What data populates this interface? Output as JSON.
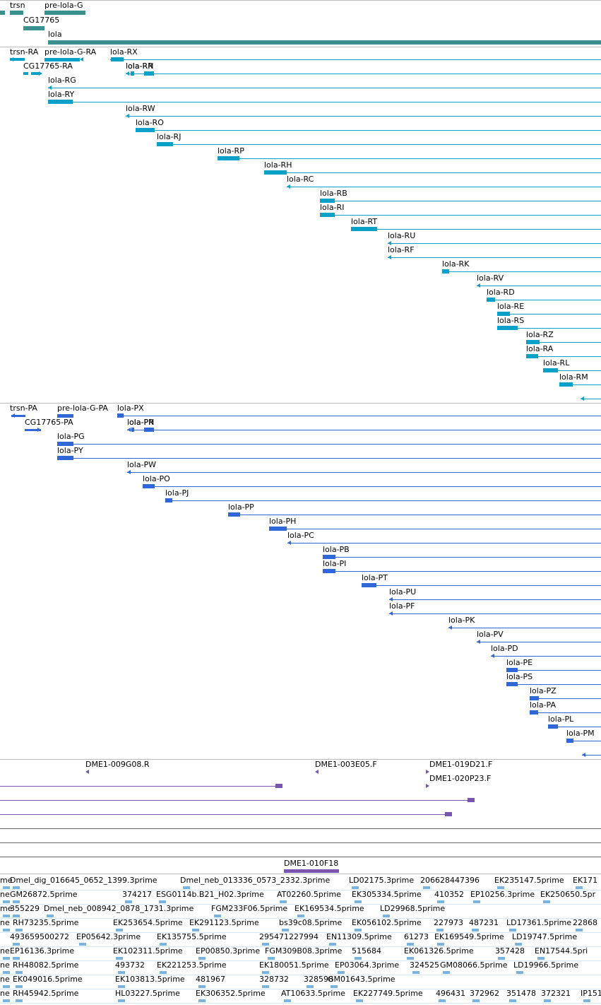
{
  "colors": {
    "gene": "#3a8f8f",
    "transcript": "#0aa0c8",
    "protein": "#2f67d6",
    "clone": "#7a55b0",
    "est": "#7ab4de",
    "separator": "#bdbdbd"
  },
  "tracks": {
    "genes": {
      "labels": [
        "trsn",
        "pre-lola-G",
        "CG17765",
        "lola"
      ]
    },
    "transcripts": {
      "labels": [
        "trsn-RA",
        "pre-lola-G-RA",
        "lola-RX",
        "CG17765-RA",
        "lola-RN",
        "lola-RR",
        "lola-RG",
        "lola-RY",
        "lola-RW",
        "lola-RO",
        "lola-RJ",
        "lola-RP",
        "lola-RH",
        "lola-RC",
        "lola-RB",
        "lola-RI",
        "lola-RT",
        "lola-RU",
        "lola-RF",
        "lola-RK",
        "lola-RV",
        "lola-RD",
        "lola-RE",
        "lola-RS",
        "lola-RZ",
        "lola-RA",
        "lola-RL",
        "lola-RM"
      ]
    },
    "proteins": {
      "labels": [
        "trsn-PA",
        "pre-lola-G-PA",
        "lola-PX",
        "CG17765-PA",
        "lola-PN",
        "lola-PR",
        "lola-PG",
        "lola-PY",
        "lola-PW",
        "lola-PO",
        "lola-PJ",
        "lola-PP",
        "lola-PH",
        "lola-PC",
        "lola-PB",
        "lola-PI",
        "lola-PT",
        "lola-PU",
        "lola-PF",
        "lola-PK",
        "lola-PV",
        "lola-PD",
        "lola-PE",
        "lola-PS",
        "lola-PZ",
        "lola-PA",
        "lola-PL",
        "lola-PM"
      ]
    },
    "clones": {
      "labels": [
        "DME1-009G08.R",
        "DME1-003E05.F",
        "DME1-019D21.F",
        "DME1-020P23.F",
        "DME1-010F18"
      ]
    },
    "ests": {
      "labels": [
        "me",
        "Dmel_dig_016645_0652_1399.3prime",
        "Dmel_neb_013336_0573_2332.3prime",
        "LD02175.3prime",
        "206628447396",
        "EK235147.5prime",
        "EK171",
        "ne",
        "GM26872.5prime",
        "374217",
        "ESG0114b.B21_H02.3prime",
        "AT02260.5prime",
        "EK305334.5prime",
        "410352",
        "EP10256.3prime",
        "EK250650.5pr",
        "me",
        "355229",
        "Dmel_neb_008942_0878_1731.3prime",
        "FGM233F06.5prime",
        "EK169534.5prime",
        "LD29968.5prime",
        "ne",
        "RH73235.5prime",
        "EK253654.5prime",
        "EK291123.5prime",
        "bs39c08.5prime",
        "EK056102.5prime",
        "227973",
        "487231",
        "LD17361.5prime",
        "22868",
        "493659500272",
        "EP05642.3prime",
        "EK135755.5prime",
        "295471227994",
        "EN11309.5prime",
        "61273",
        "EK169549.5prime",
        "LD19747.5prime",
        "ne",
        "EP16136.3prime",
        "EK102311.5prime",
        "EP00850.3prime",
        "FGM309B08.3prime",
        "515684",
        "EK061326.5prime",
        "357428",
        "EN17544.5pri",
        "ne",
        "RH48082.5prime",
        "493732",
        "EK221253.5prime",
        "EK180051.5prime",
        "EP03064.3prime",
        "324525",
        "GM08066.5prime",
        "LD19966.5prime",
        "ne",
        "EK049016.5prime",
        "EK103813.5prime",
        "481967",
        "328732",
        "328598",
        "GM01643.5prime",
        "ne",
        "RH45942.5prime",
        "HL03227.5prime",
        "EK306352.5prime",
        "AT10633.5prime",
        "EK227749.5prime",
        "496431",
        "372962",
        "351478",
        "372321",
        "IP151"
      ]
    }
  }
}
